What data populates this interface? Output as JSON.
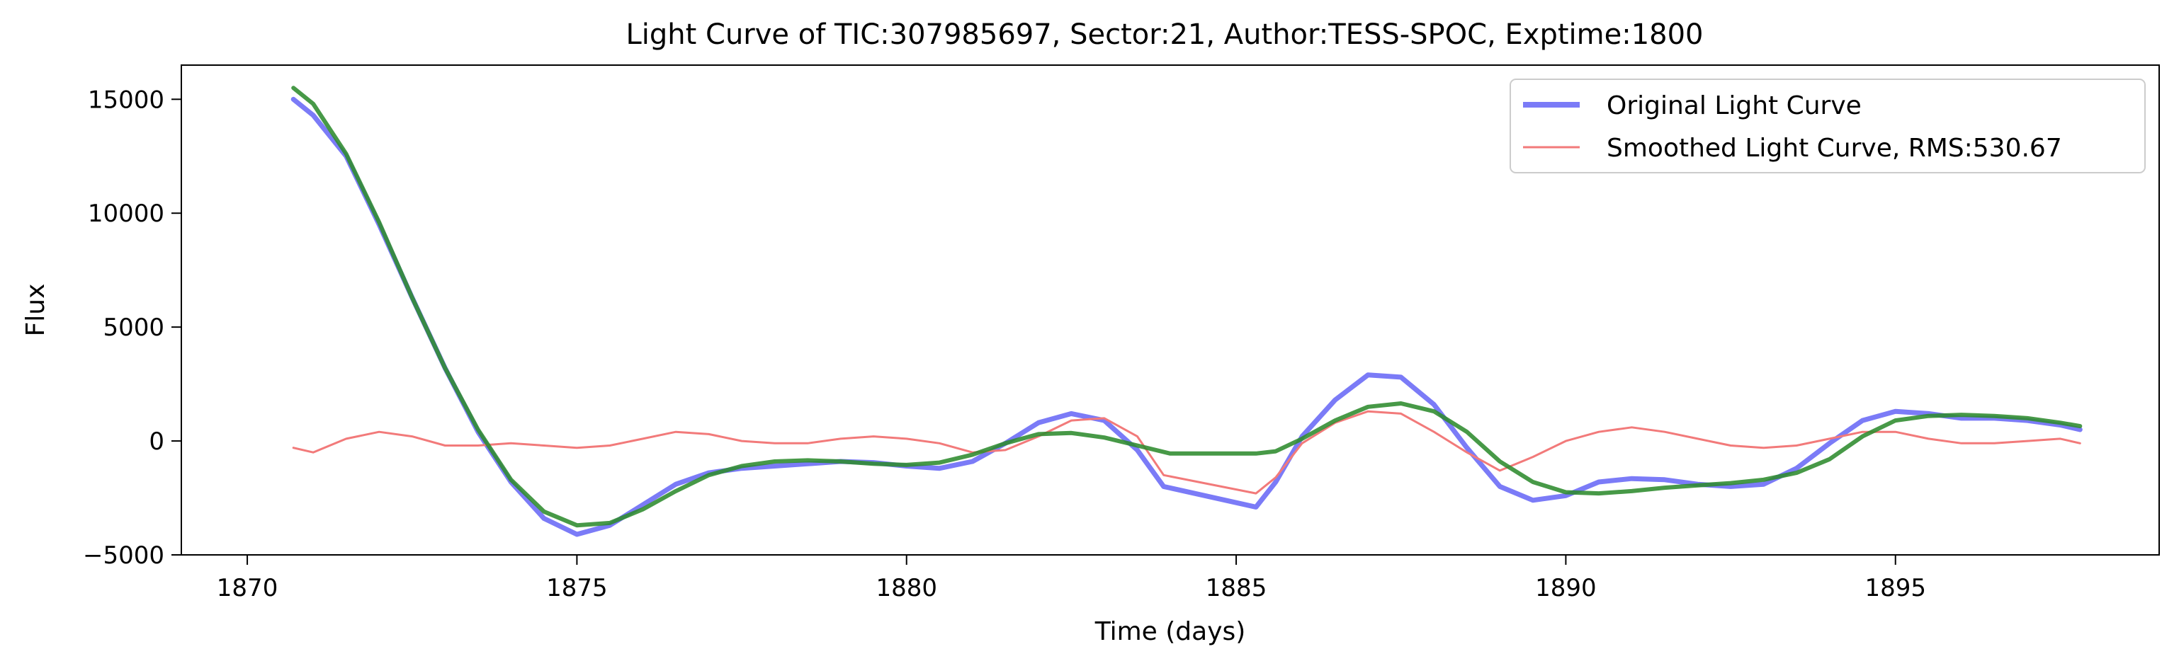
{
  "chart_data": {
    "type": "line",
    "title": "Light Curve of TIC:307985697, Sector:21, Author:TESS-SPOC, Exptime:1800",
    "xlabel": "Time (days)",
    "ylabel": "Flux",
    "xlim": [
      1869.0,
      1899.0
    ],
    "ylim": [
      -5000,
      16500
    ],
    "xticks": [
      1870,
      1875,
      1880,
      1885,
      1890,
      1895
    ],
    "yticks": [
      -5000,
      0,
      5000,
      10000,
      15000
    ],
    "xtick_labels": [
      "1870",
      "1875",
      "1880",
      "1885",
      "1890",
      "1895"
    ],
    "ytick_labels": [
      "−5000",
      "0",
      "5000",
      "10000",
      "15000"
    ],
    "grid": false,
    "legend_position": "top-right",
    "series": [
      {
        "name": "Original Light Curve",
        "color": "#7b7bf7",
        "x": [
          1870.7,
          1871.0,
          1871.5,
          1872.0,
          1872.5,
          1873.0,
          1873.5,
          1874.0,
          1874.5,
          1875.0,
          1875.5,
          1876.0,
          1876.5,
          1877.0,
          1877.5,
          1878.0,
          1878.5,
          1879.0,
          1879.5,
          1880.0,
          1880.5,
          1881.0,
          1881.5,
          1882.0,
          1882.5,
          1883.0,
          1883.5,
          1883.9,
          1885.3,
          1885.6,
          1886.0,
          1886.5,
          1887.0,
          1887.5,
          1888.0,
          1888.5,
          1889.0,
          1889.5,
          1890.0,
          1890.5,
          1891.0,
          1891.5,
          1892.0,
          1892.5,
          1893.0,
          1893.5,
          1894.0,
          1894.5,
          1895.0,
          1895.5,
          1896.0,
          1896.5,
          1897.0,
          1897.5,
          1897.8
        ],
        "y": [
          15000,
          14300,
          12500,
          9500,
          6300,
          3200,
          400,
          -1800,
          -3400,
          -4100,
          -3700,
          -2800,
          -1900,
          -1400,
          -1200,
          -1100,
          -1000,
          -900,
          -950,
          -1100,
          -1200,
          -900,
          -100,
          800,
          1200,
          900,
          -400,
          -2000,
          -2900,
          -1800,
          200,
          1800,
          2900,
          2800,
          1600,
          -300,
          -2000,
          -2600,
          -2400,
          -1800,
          -1650,
          -1700,
          -1900,
          -2000,
          -1900,
          -1200,
          -100,
          900,
          1300,
          1200,
          1000,
          1000,
          900,
          700,
          500
        ]
      },
      {
        "name": "Smoothed Light Curve, RMS:530.67",
        "color": "#f27a7a",
        "x": [
          1870.7,
          1871.0,
          1871.5,
          1872.0,
          1872.5,
          1873.0,
          1873.5,
          1874.0,
          1874.5,
          1875.0,
          1875.5,
          1876.0,
          1876.5,
          1877.0,
          1877.5,
          1878.0,
          1878.5,
          1879.0,
          1879.5,
          1880.0,
          1880.5,
          1881.0,
          1881.5,
          1882.0,
          1882.5,
          1883.0,
          1883.5,
          1883.9,
          1885.3,
          1885.6,
          1886.0,
          1886.5,
          1887.0,
          1887.5,
          1888.0,
          1888.5,
          1889.0,
          1889.5,
          1890.0,
          1890.5,
          1891.0,
          1891.5,
          1892.0,
          1892.5,
          1893.0,
          1893.5,
          1894.0,
          1894.5,
          1895.0,
          1895.5,
          1896.0,
          1896.5,
          1897.0,
          1897.5,
          1897.8
        ],
        "y": [
          -300,
          -500,
          100,
          400,
          200,
          -200,
          -200,
          -100,
          -200,
          -300,
          -200,
          100,
          400,
          300,
          0,
          -100,
          -100,
          100,
          200,
          100,
          -100,
          -500,
          -400,
          200,
          900,
          1000,
          200,
          -1500,
          -2300,
          -1600,
          -100,
          800,
          1300,
          1200,
          400,
          -500,
          -1300,
          -700,
          0,
          400,
          600,
          400,
          100,
          -200,
          -300,
          -200,
          100,
          400,
          400,
          100,
          -100,
          -100,
          0,
          100,
          -100
        ]
      },
      {
        "name": "",
        "color": "#2e8b2e",
        "x": [
          1870.7,
          1871.0,
          1871.5,
          1872.0,
          1872.5,
          1873.0,
          1873.5,
          1874.0,
          1874.5,
          1875.0,
          1875.5,
          1876.0,
          1876.5,
          1877.0,
          1877.5,
          1878.0,
          1878.5,
          1879.0,
          1879.5,
          1880.0,
          1880.5,
          1881.0,
          1881.5,
          1882.0,
          1882.5,
          1883.0,
          1883.5,
          1884.0,
          1885.0,
          1885.3,
          1885.6,
          1886.0,
          1886.5,
          1887.0,
          1887.5,
          1888.0,
          1888.5,
          1889.0,
          1889.5,
          1890.0,
          1890.5,
          1891.0,
          1891.5,
          1892.0,
          1892.5,
          1893.0,
          1893.5,
          1894.0,
          1894.5,
          1895.0,
          1895.5,
          1896.0,
          1896.5,
          1897.0,
          1897.5,
          1897.8
        ],
        "y": [
          15500,
          14800,
          12600,
          9600,
          6300,
          3200,
          500,
          -1700,
          -3100,
          -3700,
          -3600,
          -3000,
          -2200,
          -1500,
          -1100,
          -900,
          -850,
          -900,
          -1000,
          -1050,
          -950,
          -600,
          -100,
          300,
          350,
          150,
          -200,
          -550,
          -550,
          -550,
          -450,
          100,
          900,
          1500,
          1650,
          1300,
          400,
          -900,
          -1800,
          -2250,
          -2300,
          -2200,
          -2050,
          -1950,
          -1850,
          -1700,
          -1400,
          -800,
          200,
          900,
          1100,
          1150,
          1100,
          1000,
          800,
          650
        ]
      }
    ]
  }
}
